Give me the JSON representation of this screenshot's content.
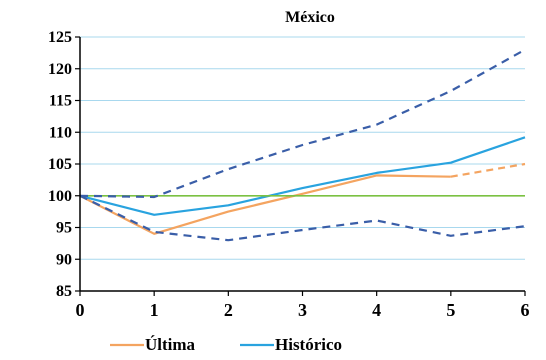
{
  "chart_data": {
    "type": "line",
    "title": "México",
    "xlabel": "",
    "ylabel": "",
    "x": [
      0,
      1,
      2,
      3,
      4,
      5,
      6
    ],
    "xlim": [
      0,
      6
    ],
    "ylim": [
      85,
      125
    ],
    "yticks": [
      85,
      90,
      95,
      100,
      105,
      110,
      115,
      120,
      125
    ],
    "xticks": [
      0,
      1,
      2,
      3,
      4,
      5,
      6
    ],
    "grid": "horizontal",
    "legend_position": "bottom",
    "colors": {
      "ultima": "#f4a460",
      "historico": "#29a3df",
      "baseline": "#7bc142",
      "bands": "#3a5ea8",
      "grid": "#a8d8ee",
      "axis": "#000000"
    },
    "series": [
      {
        "name": "Última",
        "style": "solid",
        "x": [
          0,
          1,
          2,
          3,
          4,
          5
        ],
        "values": [
          100,
          94,
          97.5,
          100.3,
          103.2,
          103
        ]
      },
      {
        "name": "",
        "style": "dashed-orange",
        "x": [
          5,
          6
        ],
        "values": [
          103,
          105
        ]
      },
      {
        "name": "Histórico",
        "style": "solid",
        "x": [
          0,
          1,
          2,
          3,
          4,
          5,
          6
        ],
        "values": [
          100,
          97,
          98.5,
          101.2,
          103.6,
          105.2,
          109.2
        ]
      },
      {
        "name": "",
        "style": "baseline",
        "x": [
          0,
          6
        ],
        "values": [
          100,
          100
        ]
      },
      {
        "name": "",
        "style": "dashed-blue",
        "x": [
          0,
          1,
          2,
          3,
          4,
          5,
          6
        ],
        "values": [
          100,
          99.8,
          104.2,
          108,
          111.2,
          116.5,
          123
        ]
      },
      {
        "name": "",
        "style": "dashed-blue",
        "x": [
          0,
          1,
          2,
          3,
          4,
          5,
          6
        ],
        "values": [
          100,
          94.3,
          93,
          94.6,
          96.1,
          93.7,
          95.2
        ]
      }
    ],
    "legend": [
      {
        "label": "Última",
        "style": "solid-orange"
      },
      {
        "label": "Histórico",
        "style": "solid-blue"
      }
    ]
  }
}
